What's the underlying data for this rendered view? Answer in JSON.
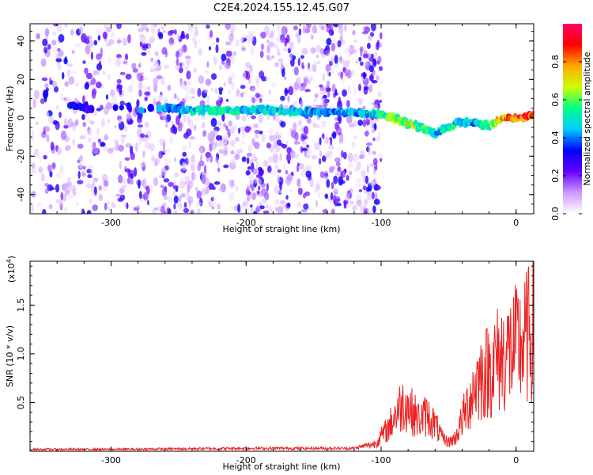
{
  "title": "C2E4.2024.155.12.45.G07",
  "chart_data": [
    {
      "type": "heatmap",
      "xlabel": "Height of straight line (km)",
      "ylabel": "Frequency (Hz)",
      "xlim": [
        -360,
        13
      ],
      "ylim": [
        -50,
        49
      ],
      "x_ticks": [
        -300,
        -200,
        -100,
        0
      ],
      "x_tick_labels": [
        "-300",
        "-200",
        "-100",
        "0"
      ],
      "y_ticks": [
        -40,
        -20,
        0,
        20,
        40
      ],
      "y_tick_labels": [
        "-40",
        "-20",
        "0",
        "20",
        "40"
      ],
      "colorbar": {
        "label": "Normalized spectral amplitude",
        "range": [
          0,
          1
        ],
        "ticks": [
          0.0,
          0.2,
          0.4,
          0.6,
          0.8
        ],
        "tick_labels": [
          "0.0",
          "0.2",
          "0.4",
          "0.6",
          "0.8"
        ],
        "colors": [
          "#ffffff",
          "#cc99ff",
          "#6600ff",
          "#0000ff",
          "#00ccff",
          "#00ff88",
          "#ccff00",
          "#ffaa00",
          "#ff0000",
          "#ff0066"
        ]
      },
      "ridge": {
        "x": [
          -330,
          -310,
          -260,
          -240,
          -220,
          -200,
          -180,
          -160,
          -140,
          -120,
          -100,
          -90,
          -80,
          -70,
          -60,
          -50,
          -40,
          -30,
          -20,
          -10,
          0,
          10,
          13
        ],
        "y": [
          6,
          5,
          5,
          4,
          4,
          4,
          4,
          3,
          3,
          3,
          2,
          0,
          -3,
          -5,
          -8,
          -5,
          -2,
          -3,
          -4,
          0,
          0,
          1,
          2
        ],
        "amplitude": [
          0.35,
          0.3,
          0.45,
          0.5,
          0.55,
          0.5,
          0.5,
          0.5,
          0.45,
          0.45,
          0.55,
          0.65,
          0.7,
          0.6,
          0.5,
          0.55,
          0.5,
          0.45,
          0.6,
          0.85,
          0.9,
          0.9,
          0.8
        ]
      }
    },
    {
      "type": "line",
      "xlabel": "Height of straight line (km)",
      "ylabel": "SNR (10 * v/v)",
      "y_multiplier": "(x10",
      "y_multiplier_exp": "4",
      "y_multiplier_close": ")",
      "xlim": [
        -360,
        13
      ],
      "ylim": [
        0,
        1.95
      ],
      "x_ticks": [
        -300,
        -200,
        -100,
        0
      ],
      "x_tick_labels": [
        "-300",
        "-200",
        "-100",
        "0"
      ],
      "y_ticks": [
        0.5,
        1.0,
        1.5
      ],
      "y_tick_labels": [
        "0.5",
        "1.0",
        "1.5"
      ],
      "color": "#ee2222",
      "series": [
        {
          "x": [
            -360,
            -300,
            -200,
            -120,
            -105,
            -95,
            -88,
            -82,
            -78,
            -72,
            -66,
            -60,
            -55,
            -50,
            -45,
            -40,
            -35,
            -30,
            -25,
            -20,
            -15,
            -10,
            -5,
            0,
            5,
            10,
            13
          ],
          "y": [
            0.02,
            0.02,
            0.03,
            0.03,
            0.08,
            0.25,
            0.45,
            0.55,
            0.45,
            0.35,
            0.4,
            0.3,
            0.15,
            0.1,
            0.15,
            0.35,
            0.55,
            0.75,
            0.85,
            0.9,
            1.0,
            1.05,
            1.1,
            1.15,
            1.2,
            1.3,
            1.4
          ]
        }
      ]
    }
  ]
}
